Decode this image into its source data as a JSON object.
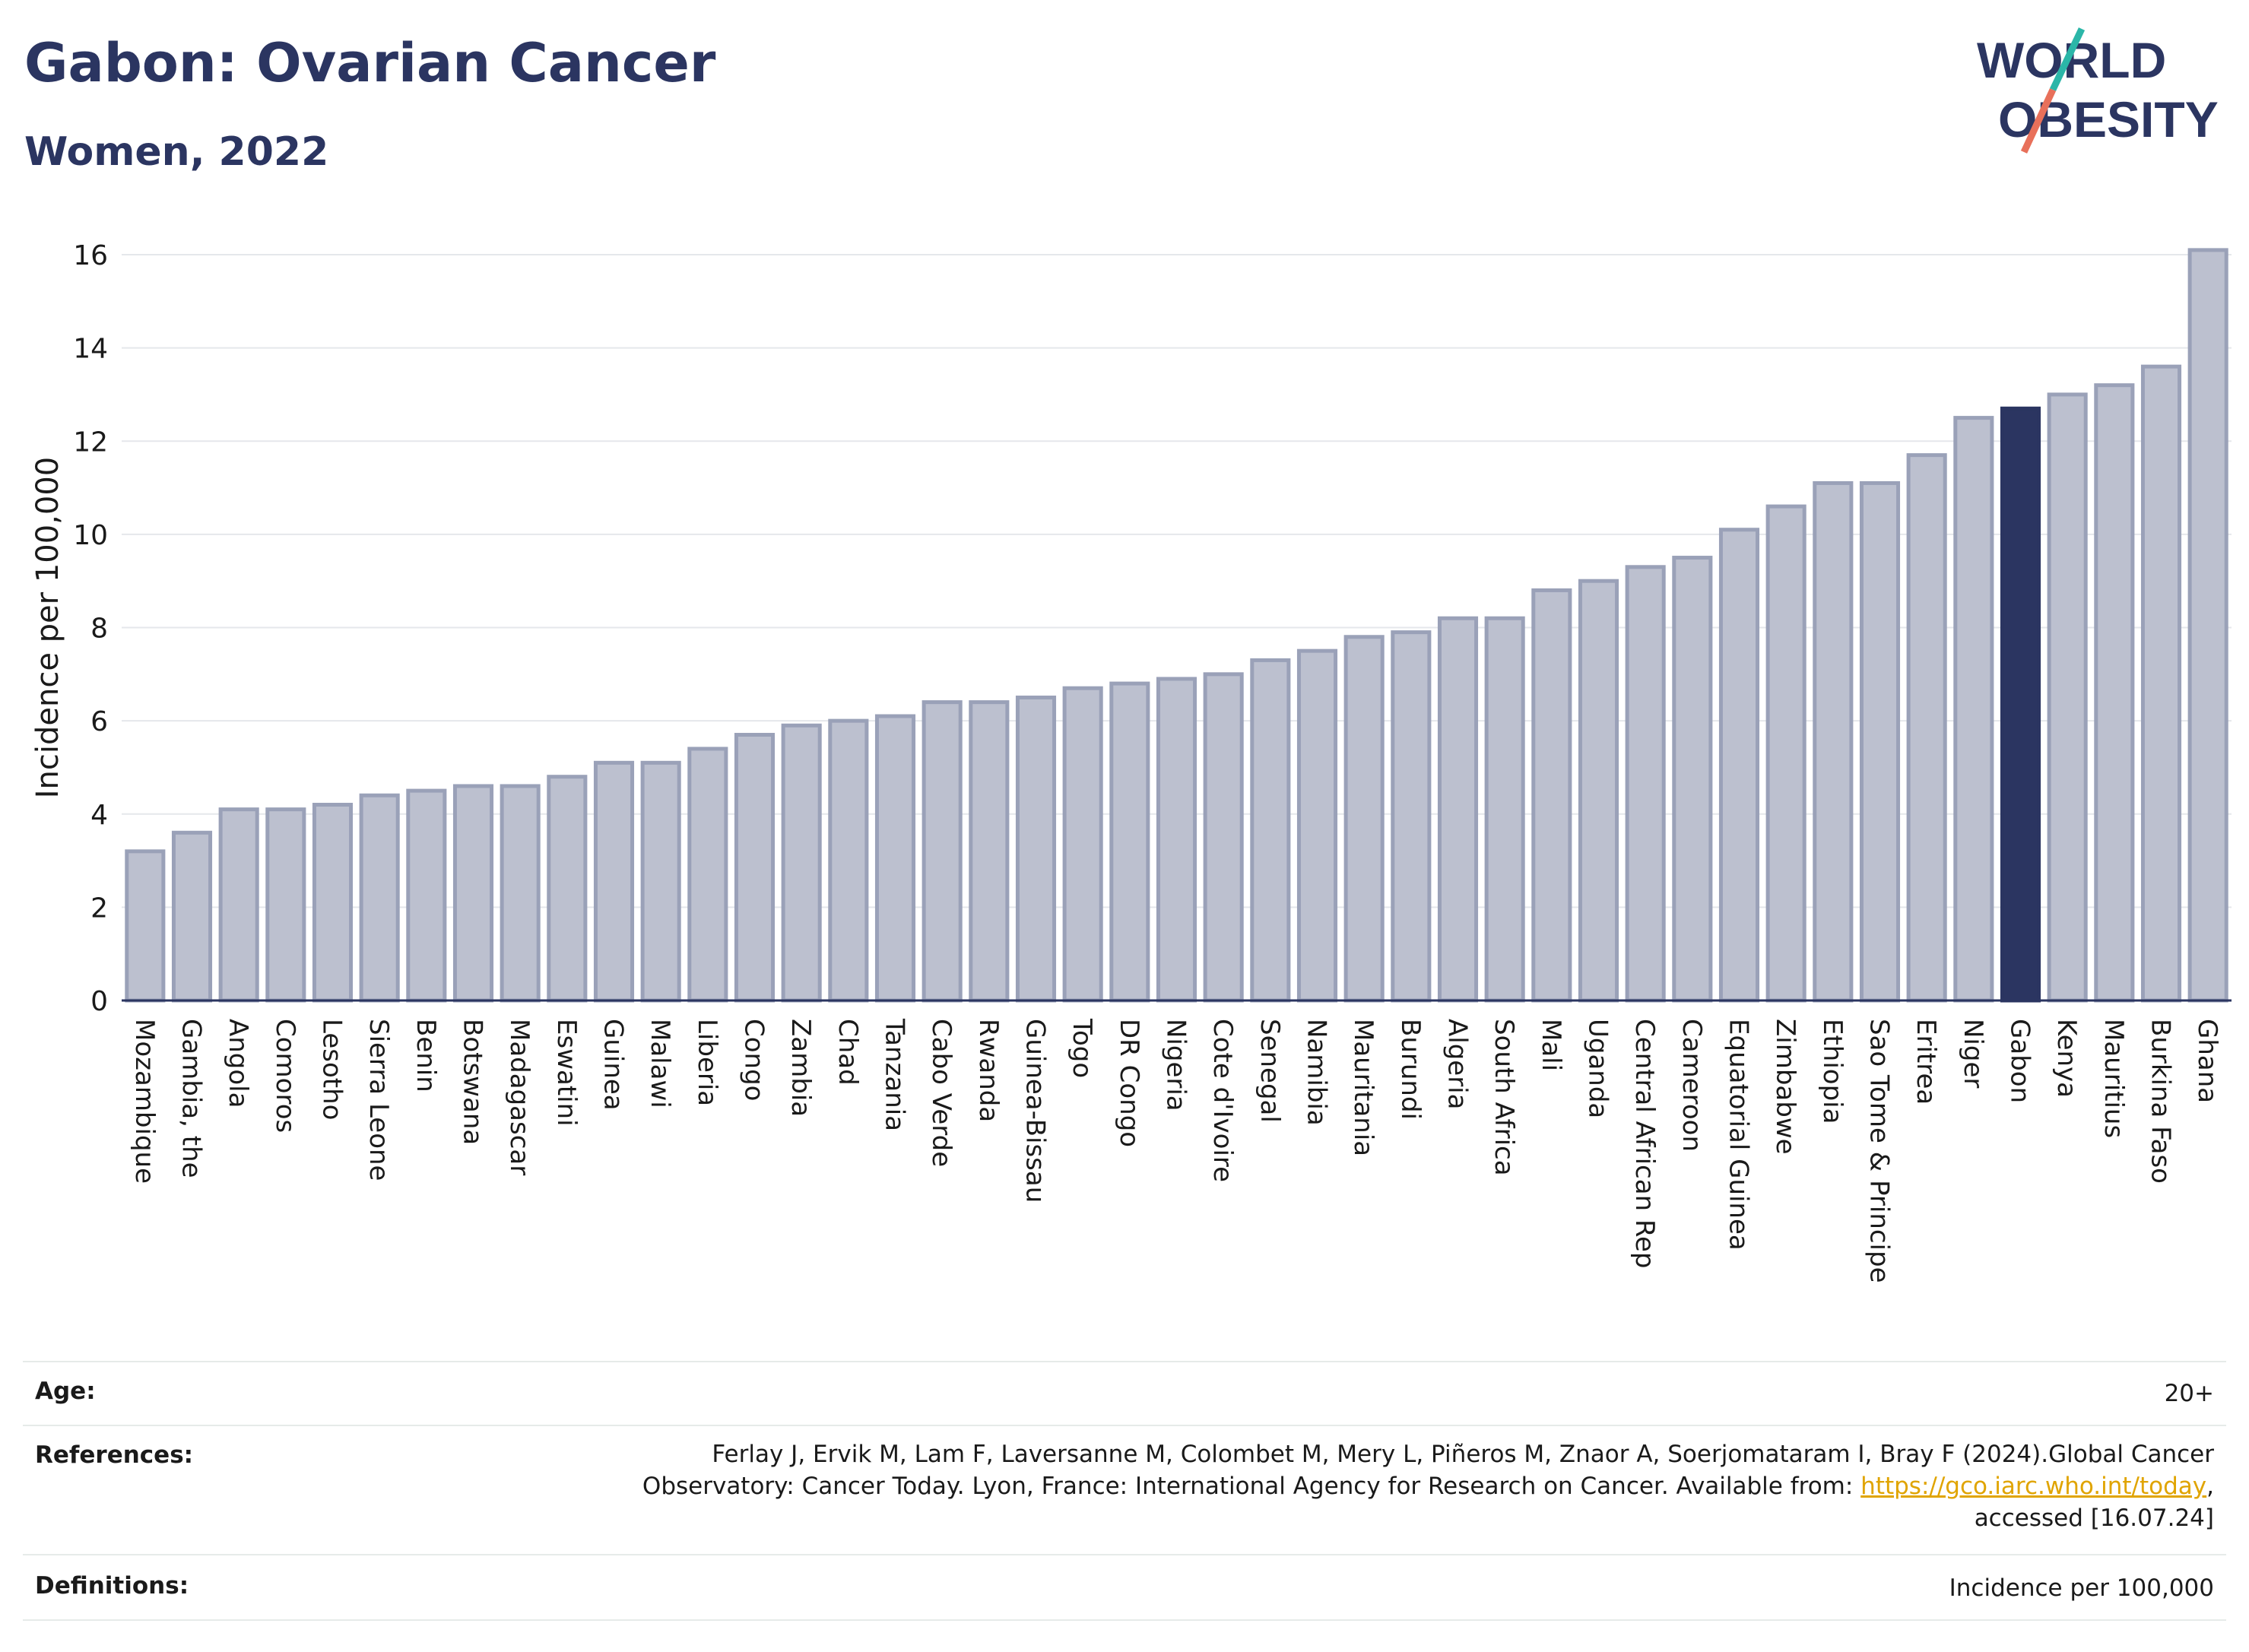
{
  "header": {
    "title": "Gabon: Ovarian Cancer",
    "subtitle": "Women, 2022"
  },
  "logo": {
    "line1": "WORLD",
    "line2": "OBESITY",
    "colors": {
      "text": "#2b3561",
      "slash_top": "#2bb6a8",
      "slash_bottom": "#e8705a"
    }
  },
  "chart_data": {
    "type": "bar",
    "title": "Gabon: Ovarian Cancer",
    "subtitle": "Women, 2022",
    "ylabel": "Incidence per 100,000",
    "xlabel": "",
    "ylim": [
      0,
      16.2
    ],
    "yticks": [
      0,
      2,
      4,
      6,
      8,
      10,
      12,
      14,
      16
    ],
    "grid": true,
    "highlight": "Gabon",
    "colors": {
      "bar": "#bcc0cf",
      "bar_edge": "#9aa1b8",
      "highlight": "#2b3561"
    },
    "categories": [
      "Mozambique",
      "Gambia, the",
      "Angola",
      "Comoros",
      "Lesotho",
      "Sierra Leone",
      "Benin",
      "Botswana",
      "Madagascar",
      "Eswatini",
      "Guinea",
      "Malawi",
      "Liberia",
      "Congo",
      "Zambia",
      "Chad",
      "Tanzania",
      "Cabo Verde",
      "Rwanda",
      "Guinea-Bissau",
      "Togo",
      "DR Congo",
      "Nigeria",
      "Cote d'Ivoire",
      "Senegal",
      "Namibia",
      "Mauritania",
      "Burundi",
      "Algeria",
      "South Africa",
      "Mali",
      "Uganda",
      "Central African Rep",
      "Cameroon",
      "Equatorial Guinea",
      "Zimbabwe",
      "Ethiopia",
      "Sao Tome & Principe",
      "Eritrea",
      "Niger",
      "Gabon",
      "Kenya",
      "Mauritius",
      "Burkina Faso",
      "Ghana"
    ],
    "values": [
      3.2,
      3.6,
      4.1,
      4.1,
      4.2,
      4.4,
      4.5,
      4.6,
      4.6,
      4.8,
      5.1,
      5.1,
      5.4,
      5.7,
      5.9,
      6.0,
      6.1,
      6.4,
      6.4,
      6.5,
      6.7,
      6.8,
      6.9,
      7.0,
      7.3,
      7.5,
      7.8,
      7.9,
      8.2,
      8.2,
      8.8,
      9.0,
      9.3,
      9.5,
      10.1,
      10.6,
      11.1,
      11.1,
      11.7,
      12.5,
      12.7,
      13.0,
      13.2,
      13.6,
      16.1
    ]
  },
  "info": {
    "age_label": "Age:",
    "age_value": "20+",
    "references_label": "References:",
    "references_text_1": "Ferlay J, Ervik M, Lam F, Laversanne M, Colombet M, Mery L, Piñeros M, Znaor A, Soerjomataram I, Bray F (2024).Global Cancer",
    "references_text_2": "Observatory: Cancer Today. Lyon, France: International Agency for Research on Cancer. Available from: ",
    "references_link": "https://gco.iarc.who.int/today",
    "references_text_3": ",",
    "references_text_4": "accessed [16.07.24]",
    "definitions_label": "Definitions:",
    "definitions_value": "Incidence per 100,000"
  }
}
